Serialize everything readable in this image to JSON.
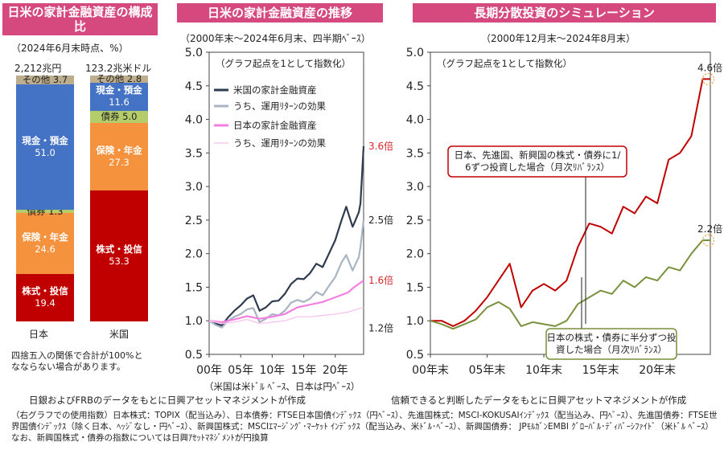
{
  "chart_data": [
    {
      "type": "bar",
      "title": "日米の家計金融資産の構成比",
      "subtitle": "（2024年6月末時点、%）",
      "categories": [
        "日本",
        "米国"
      ],
      "totals": [
        "2,212兆円",
        "123.2兆米ドル"
      ],
      "series": [
        {
          "name": "株式・投信",
          "color": "#c00000",
          "values": [
            19.4,
            53.3
          ]
        },
        {
          "name": "保険・年金",
          "color": "#f5923e",
          "values": [
            24.6,
            27.3
          ]
        },
        {
          "name": "債券",
          "color": "#b5cc6a",
          "values": [
            1.3,
            5.0
          ]
        },
        {
          "name": "現金・預金",
          "color": "#4472c4",
          "values": [
            51.0,
            11.6
          ]
        },
        {
          "name": "その他",
          "color": "#bdae8e",
          "values": [
            3.7,
            2.8
          ]
        }
      ],
      "note": "四捨五入の関係で合計が100%となならない場合があります。"
    },
    {
      "type": "line",
      "title": "日米の家計金融資産の推移",
      "subtitle": "（2000年末～2024年6月末、四半期ﾍﾞｰｽ）",
      "annotation": "（グラフ起点を1として指数化）",
      "xlabel": "（米国は米ﾄﾞﾙ ﾍﾞｰｽ、日本は円ﾍﾞｰｽ）",
      "x_ticks": [
        "00年",
        "05年",
        "10年",
        "15年",
        "20年"
      ],
      "x_range": [
        2000,
        2024.5
      ],
      "ylim": [
        0.5,
        5.0
      ],
      "y_ticks": [
        "0.5",
        "1.0",
        "1.5",
        "2.0",
        "2.5",
        "3.0",
        "3.5",
        "4.0",
        "4.5",
        "5.0"
      ],
      "series": [
        {
          "name": "米国の家計金融資産",
          "color": "#2f3b4e",
          "end_label": "3.6倍",
          "end_color": "#d62728",
          "points": [
            [
              2000,
              1.0
            ],
            [
              2001,
              0.96
            ],
            [
              2002,
              0.93
            ],
            [
              2003,
              1.05
            ],
            [
              2004,
              1.15
            ],
            [
              2005,
              1.23
            ],
            [
              2006,
              1.33
            ],
            [
              2007,
              1.38
            ],
            [
              2008,
              1.15
            ],
            [
              2009,
              1.2
            ],
            [
              2010,
              1.29
            ],
            [
              2011,
              1.3
            ],
            [
              2012,
              1.4
            ],
            [
              2013,
              1.55
            ],
            [
              2014,
              1.63
            ],
            [
              2015,
              1.62
            ],
            [
              2016,
              1.71
            ],
            [
              2017,
              1.85
            ],
            [
              2018,
              1.8
            ],
            [
              2019,
              2.0
            ],
            [
              2020,
              2.2
            ],
            [
              2021,
              2.5
            ],
            [
              2021.75,
              2.7
            ],
            [
              2022.75,
              2.4
            ],
            [
              2023,
              2.45
            ],
            [
              2023.75,
              2.62
            ],
            [
              2024,
              2.75
            ],
            [
              2024.5,
              3.6
            ]
          ]
        },
        {
          "name": "うち、運用ﾘﾀｰﾝの効果",
          "color": "#a9b4c2",
          "end_label": "2.5倍",
          "end_color": "#222222",
          "points": [
            [
              2000,
              1.0
            ],
            [
              2001,
              0.94
            ],
            [
              2002,
              0.9
            ],
            [
              2003,
              1.0
            ],
            [
              2004,
              1.06
            ],
            [
              2005,
              1.1
            ],
            [
              2006,
              1.17
            ],
            [
              2007,
              1.19
            ],
            [
              2008,
              0.98
            ],
            [
              2009,
              1.03
            ],
            [
              2010,
              1.1
            ],
            [
              2011,
              1.08
            ],
            [
              2012,
              1.15
            ],
            [
              2013,
              1.27
            ],
            [
              2014,
              1.31
            ],
            [
              2015,
              1.28
            ],
            [
              2016,
              1.33
            ],
            [
              2017,
              1.43
            ],
            [
              2018,
              1.38
            ],
            [
              2019,
              1.52
            ],
            [
              2020,
              1.65
            ],
            [
              2021,
              1.87
            ],
            [
              2021.75,
              1.98
            ],
            [
              2022.75,
              1.75
            ],
            [
              2023,
              1.8
            ],
            [
              2023.75,
              1.95
            ],
            [
              2024,
              2.1
            ],
            [
              2024.5,
              2.5
            ]
          ]
        },
        {
          "name": "日本の家計金融資産",
          "color": "#f47fe0",
          "end_label": "1.6倍",
          "end_color": "#d62728",
          "points": [
            [
              2000,
              1.0
            ],
            [
              2002,
              0.98
            ],
            [
              2004,
              1.02
            ],
            [
              2006,
              1.07
            ],
            [
              2008,
              1.03
            ],
            [
              2010,
              1.06
            ],
            [
              2012,
              1.1
            ],
            [
              2014,
              1.2
            ],
            [
              2016,
              1.24
            ],
            [
              2018,
              1.28
            ],
            [
              2020,
              1.35
            ],
            [
              2022,
              1.42
            ],
            [
              2023,
              1.5
            ],
            [
              2024.5,
              1.6
            ]
          ]
        },
        {
          "name": "うち、運用ﾘﾀｰﾝの効果",
          "color": "#f7c7ef",
          "end_label": "1.2倍",
          "end_color": "#222222",
          "points": [
            [
              2000,
              1.0
            ],
            [
              2002,
              0.96
            ],
            [
              2004,
              0.98
            ],
            [
              2006,
              1.02
            ],
            [
              2008,
              0.96
            ],
            [
              2010,
              0.98
            ],
            [
              2012,
              1.0
            ],
            [
              2014,
              1.06
            ],
            [
              2016,
              1.06
            ],
            [
              2018,
              1.08
            ],
            [
              2020,
              1.1
            ],
            [
              2022,
              1.13
            ],
            [
              2023,
              1.16
            ],
            [
              2024.5,
              1.2
            ]
          ]
        }
      ],
      "source": "日銀およびFRBのデータをもとに日興アセットマネジメントが作成"
    },
    {
      "type": "line",
      "title": "長期分散投資のシミュレーション",
      "subtitle": "（2000年12月末～2024年8月末）",
      "annotation": "（グラフ起点を1として指数化）",
      "x_ticks": [
        "00年末",
        "05年末",
        "10年末",
        "15年末",
        "20年末"
      ],
      "x_range": [
        2000,
        2024.67
      ],
      "ylim": [
        0.5,
        5.0
      ],
      "y_ticks": [
        "0.5",
        "1.0",
        "1.5",
        "2.0",
        "2.5",
        "3.0",
        "3.5",
        "4.0",
        "4.5",
        "5.0"
      ],
      "series": [
        {
          "name": "日本、先進国、新興国の株式・債券に1/6ずつ投資した場合（月次ﾘﾊﾞﾗﾝｽ）",
          "color": "#c00000",
          "end_label": "4.6倍",
          "points": [
            [
              2000,
              1.0
            ],
            [
              2001,
              1.0
            ],
            [
              2002,
              0.92
            ],
            [
              2003,
              1.0
            ],
            [
              2004,
              1.15
            ],
            [
              2005,
              1.35
            ],
            [
              2006,
              1.6
            ],
            [
              2007,
              1.85
            ],
            [
              2008,
              1.2
            ],
            [
              2009,
              1.45
            ],
            [
              2010,
              1.55
            ],
            [
              2011,
              1.45
            ],
            [
              2012,
              1.6
            ],
            [
              2013,
              2.1
            ],
            [
              2014,
              2.45
            ],
            [
              2015,
              2.4
            ],
            [
              2016,
              2.3
            ],
            [
              2017,
              2.7
            ],
            [
              2018,
              2.6
            ],
            [
              2019,
              2.85
            ],
            [
              2020,
              2.75
            ],
            [
              2021,
              3.4
            ],
            [
              2022,
              3.5
            ],
            [
              2023,
              3.75
            ],
            [
              2024,
              4.6
            ],
            [
              2024.67,
              4.6
            ]
          ]
        },
        {
          "name": "日本の株式・債券に半分ずつ投資した場合（月次ﾘﾊﾞﾗﾝｽ）",
          "color": "#78913c",
          "end_label": "2.2倍",
          "points": [
            [
              2000,
              1.0
            ],
            [
              2001,
              0.95
            ],
            [
              2002,
              0.88
            ],
            [
              2003,
              0.95
            ],
            [
              2004,
              1.02
            ],
            [
              2005,
              1.2
            ],
            [
              2006,
              1.28
            ],
            [
              2007,
              1.18
            ],
            [
              2008,
              0.92
            ],
            [
              2009,
              0.98
            ],
            [
              2010,
              0.95
            ],
            [
              2011,
              0.92
            ],
            [
              2012,
              1.0
            ],
            [
              2013,
              1.25
            ],
            [
              2014,
              1.35
            ],
            [
              2015,
              1.45
            ],
            [
              2016,
              1.4
            ],
            [
              2017,
              1.6
            ],
            [
              2018,
              1.5
            ],
            [
              2019,
              1.65
            ],
            [
              2020,
              1.6
            ],
            [
              2021,
              1.8
            ],
            [
              2022,
              1.75
            ],
            [
              2023,
              2.0
            ],
            [
              2024,
              2.2
            ],
            [
              2024.67,
              2.2
            ]
          ]
        }
      ],
      "source": "信頼できると判断したデータをもとに日興アセットマネジメントが作成"
    }
  ],
  "footnote": "（右グラフでの使用指数）日本株式：TOPIX（配当込み）、日本債券：FTSE日本国債ｲﾝﾃﾞｯｸｽ（円ﾍﾞｰｽ）、先進国株式：MSCI-KOKUSAIｲﾝﾃﾞｯｸｽ（配当込み、円ﾍﾞｰｽ）、先進国債券：FTSE世界国債ｲﾝﾃﾞｯｸｽ（除く日本、ﾍｯｼﾞなし・円ﾍﾞｰｽ）、新興国株式：MSCIｴﾏｰｼﾞﾝｸﾞ･ﾏｰｹｯﾄ ｲﾝﾃﾞｯｸｽ（配当込み、米ﾄﾞﾙ･ﾍﾞｰｽ）、新興国債券： JPﾓﾙｶﾞﾝEMBI ｸﾞﾛｰﾊﾞﾙ･ﾃﾞｨﾊﾞｰｼﾌｧｲﾄﾞ（米ﾄﾞﾙ ﾍﾞｰｽ） なお、新興国株式・債券の指数については日興ｱｾｯﾄﾏﾈｼﾞﾒﾝﾄが円換算"
}
